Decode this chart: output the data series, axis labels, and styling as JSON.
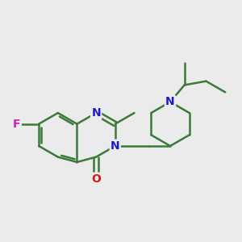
{
  "bg_color": "#ebebeb",
  "bond_color": "#3a7a3a",
  "bond_width": 1.8,
  "atom_colors": {
    "N": "#1a1acc",
    "O": "#cc1a1a",
    "F": "#cc22bb",
    "C": "#3a7a3a"
  },
  "font_size": 10,
  "bl": 0.38
}
